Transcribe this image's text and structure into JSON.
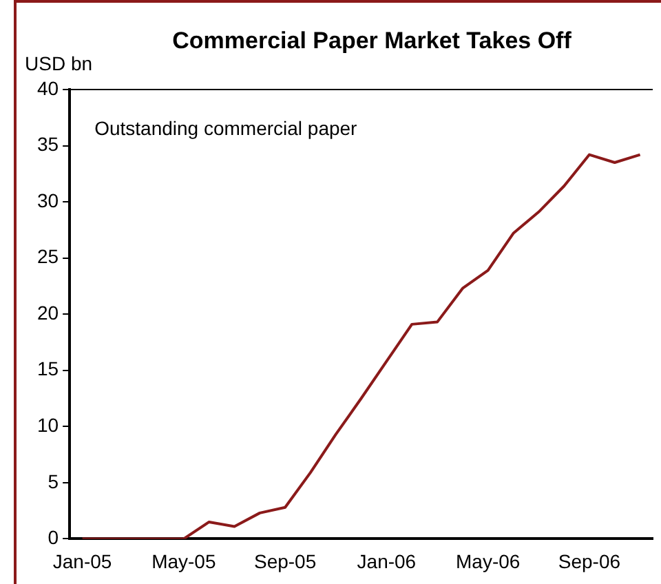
{
  "chart_data": {
    "type": "line",
    "title": "Commercial Paper Market Takes Off",
    "ylabel": "USD bn",
    "categories": [
      "Jan-05",
      null,
      null,
      null,
      "May-05",
      null,
      null,
      null,
      "Sep-05",
      null,
      null,
      null,
      "Jan-06",
      null,
      null,
      null,
      "May-06",
      null,
      null,
      null,
      "Sep-06",
      null,
      null
    ],
    "series": [
      {
        "name": "Outstanding commercial paper",
        "color": "#8b1a1a",
        "values": [
          0,
          0,
          0,
          0,
          0,
          1.5,
          1.1,
          2.3,
          2.8,
          5.9,
          9.3,
          12.5,
          15.8,
          19.1,
          19.3,
          22.3,
          23.9,
          27.2,
          29.1,
          31.4,
          34.2,
          33.5,
          34.2
        ]
      }
    ],
    "ylim": [
      0,
      40
    ],
    "yticks": [
      0,
      5,
      10,
      15,
      20,
      25,
      30,
      35,
      40
    ],
    "grid": false,
    "legend": false,
    "marker": "none",
    "line_style": "solid"
  }
}
